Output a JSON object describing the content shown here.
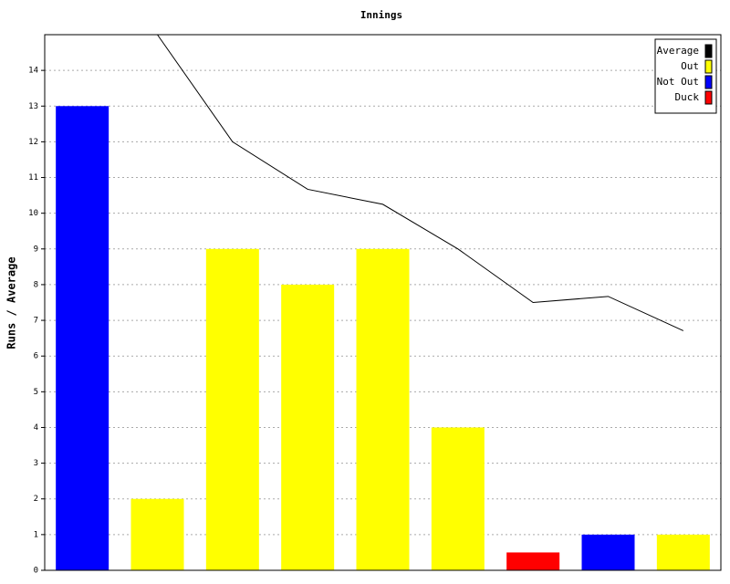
{
  "chart_data": {
    "type": "bar",
    "title": "Innings",
    "y_label": "Runs / Average",
    "categories": [
      null,
      null,
      null,
      null,
      null,
      null,
      null,
      null,
      null
    ],
    "series": [
      {
        "name": "Average",
        "type": "line",
        "color": "#000000",
        "values": [
          null,
          15,
          12,
          10.67,
          10.25,
          9,
          7.5,
          7.67,
          6.71
        ]
      },
      {
        "name": "Out",
        "type": "bar",
        "color": "#ffff00",
        "values": [
          null,
          2,
          9,
          8,
          9,
          4,
          null,
          null,
          1
        ]
      },
      {
        "name": "Not Out",
        "type": "bar",
        "color": "#0000ff",
        "values": [
          13,
          null,
          null,
          null,
          null,
          null,
          null,
          1,
          null
        ]
      },
      {
        "name": "Duck",
        "type": "bar",
        "color": "#ff0000",
        "values": [
          null,
          null,
          null,
          null,
          null,
          null,
          0.5,
          null,
          null
        ]
      }
    ],
    "ylim": [
      0,
      15
    ],
    "yticks": [
      0,
      1,
      2,
      3,
      4,
      5,
      6,
      7,
      8,
      9,
      10,
      11,
      12,
      13,
      14
    ],
    "grid": true,
    "legend": "top-right"
  }
}
